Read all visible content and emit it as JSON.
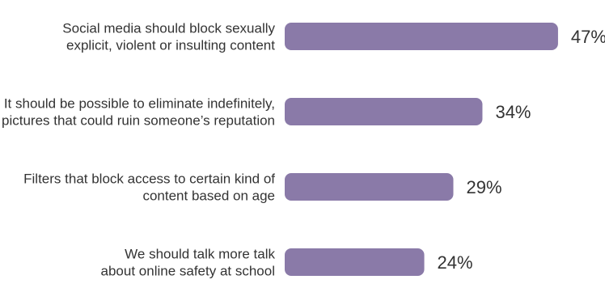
{
  "chart_data": {
    "type": "bar",
    "orientation": "horizontal",
    "title": "",
    "xlabel": "",
    "ylabel": "",
    "categories": [
      [
        "Social media should block sexually",
        "explicit, violent or insulting content"
      ],
      [
        "It should be possible to eliminate indefinitely,",
        "pictures that could ruin someone’s reputation"
      ],
      [
        "Filters that block access to certain kind of",
        "content based on age"
      ],
      [
        "We should talk more talk",
        "about online safety at school"
      ]
    ],
    "values": [
      47,
      34,
      29,
      24
    ],
    "value_labels": [
      "47%",
      "34%",
      "29%",
      "24%"
    ],
    "xlim": [
      0,
      50
    ],
    "grid": false,
    "legend": "none",
    "colors": {
      "bar": "#8a7aa8",
      "text": "#333333"
    }
  }
}
